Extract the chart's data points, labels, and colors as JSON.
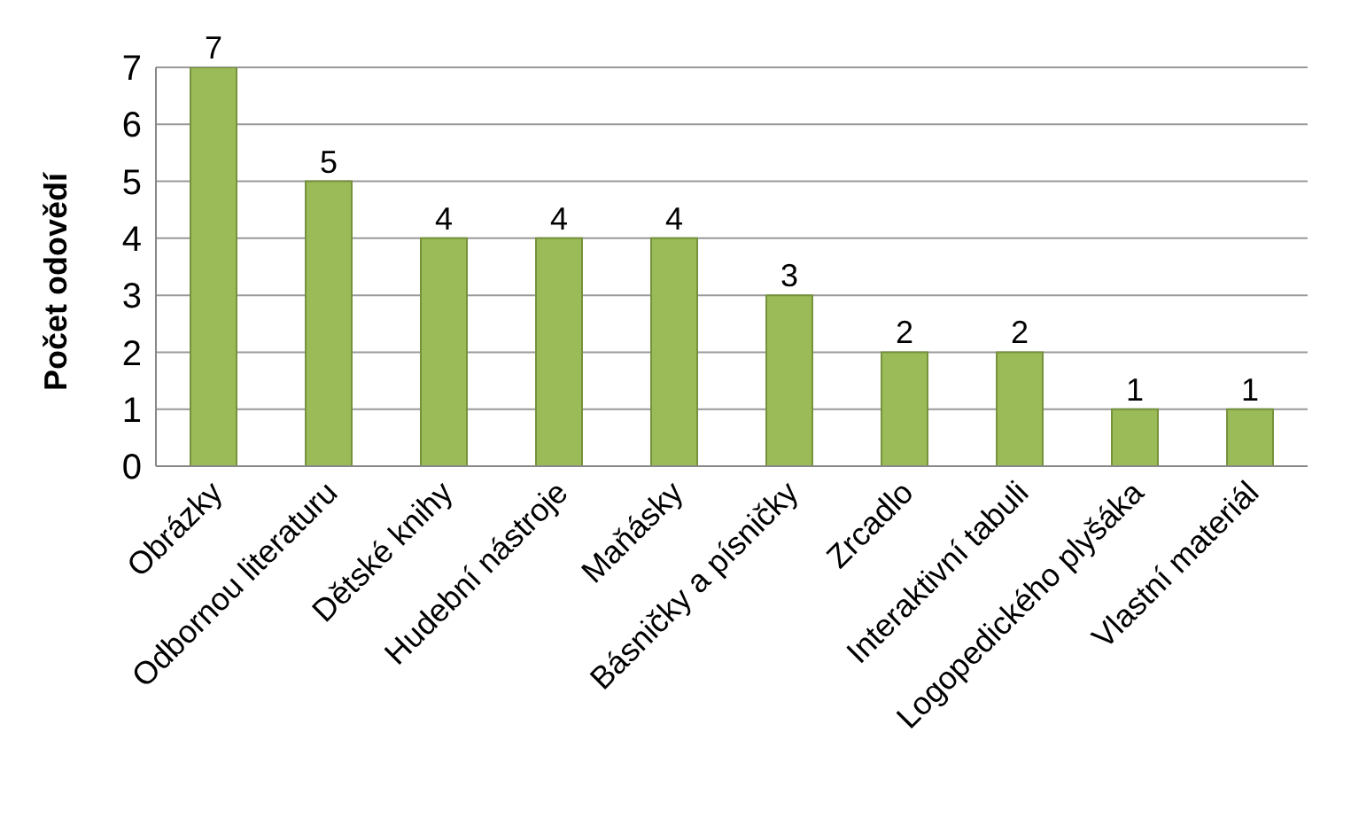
{
  "chart_data": {
    "type": "bar",
    "ylabel": "Počet odovědí",
    "categories": [
      "Obrázky",
      "Odbornou literaturu",
      "Dětské knihy",
      "Hudební nástroje",
      "Maňásky",
      "Básničky a písničky",
      "Zrcadlo",
      "Interaktivní tabuli",
      "Logopedického plyšáka",
      "Vlastní materiál"
    ],
    "values": [
      7,
      5,
      4,
      4,
      4,
      3,
      2,
      2,
      1,
      1
    ],
    "color": "#9bbb59",
    "ylim": [
      0,
      7
    ],
    "yticks": [
      0,
      1,
      2,
      3,
      4,
      5,
      6,
      7
    ],
    "grid": "y",
    "data_labels": true
  }
}
